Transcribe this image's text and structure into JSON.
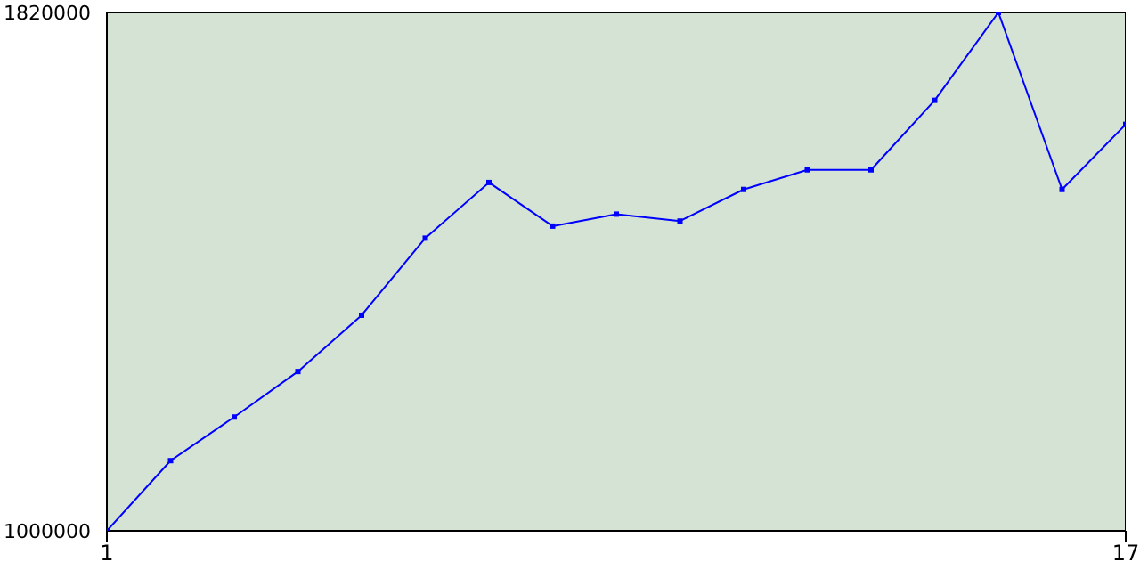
{
  "chart_data": {
    "type": "line",
    "x": [
      1,
      2,
      3,
      4,
      5,
      6,
      7,
      8,
      9,
      10,
      11,
      12,
      13,
      14,
      15,
      16,
      17
    ],
    "series": [
      {
        "color": "#0000ff",
        "values": [
          1000000,
          1111000,
          1180000,
          1252000,
          1341000,
          1463000,
          1551000,
          1482000,
          1501000,
          1490000,
          1540000,
          1571000,
          1571000,
          1681000,
          1820000,
          1540000,
          1643000
        ]
      }
    ],
    "xlim": [
      1,
      17
    ],
    "xticks": [
      1,
      17
    ],
    "ylim": [
      1000000,
      1820000
    ],
    "yticks": [
      1000000,
      1820000
    ],
    "marker": "square",
    "line_style": "solid"
  }
}
